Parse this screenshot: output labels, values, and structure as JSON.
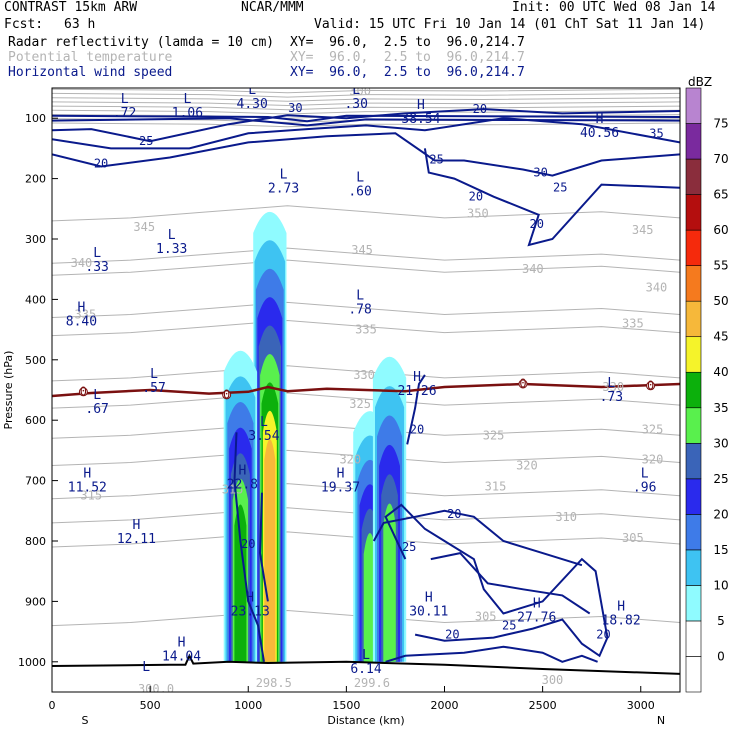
{
  "header": {
    "model": "CONTRAST 15km ARW",
    "center": "NCAR/MMM",
    "init": "Init: 00 UTC Wed 08 Jan 14",
    "fcst_label": "Fcst:",
    "fcst_value": "63 h",
    "valid": "Valid: 15 UTC Fri 10 Jan 14 (01 ChT Sat 11 Jan 14)",
    "field1": "Radar reflectivity (lamda = 10 cm)",
    "field1_xy": "XY=  96.0,  2.5 to  96.0,214.7",
    "field2": "Potential temperature",
    "field2_xy": "XY=  96.0,  2.5 to  96.0,214.7",
    "field3": "Horizontal wind speed",
    "field3_xy": "XY=  96.0,  2.5 to  96.0,214.7"
  },
  "colors": {
    "wind": "#0a1a8c",
    "theta": "#b4b4b4",
    "freezing": "#7a1010",
    "terrain": "#000000"
  },
  "chart_data": {
    "type": "heatmap",
    "title": "",
    "xlabel": "Distance (km)",
    "ylabel": "Pressure (hPa)",
    "xlim": [
      0,
      3200
    ],
    "ylim": [
      1050,
      50
    ],
    "x_ticks": [
      0,
      500,
      1000,
      1500,
      2000,
      2500,
      3000
    ],
    "y_ticks": [
      100,
      200,
      300,
      400,
      500,
      600,
      700,
      800,
      900,
      1000
    ],
    "x_end_labels": {
      "left": "S",
      "right": "N"
    },
    "colorbar": {
      "unit": "dBZ",
      "levels": [
        0,
        5,
        10,
        15,
        20,
        25,
        30,
        35,
        40,
        45,
        50,
        55,
        60,
        65,
        70,
        75
      ],
      "colors": [
        "#ffffff",
        "#8ffbff",
        "#3ec3f2",
        "#3e7be8",
        "#2a2aed",
        "#3a64b8",
        "#59f04d",
        "#0cb00c",
        "#f5f32a",
        "#f6b83a",
        "#f57a1e",
        "#f52a0c",
        "#b40e0e",
        "#8a2d3c",
        "#7a2a9e",
        "#b884d0"
      ]
    },
    "reflectivity_cells": [
      {
        "x": 1110,
        "top": 230,
        "bottom": 1000,
        "max_dbz": 45
      },
      {
        "x": 960,
        "top": 460,
        "bottom": 1000,
        "max_dbz": 35
      },
      {
        "x": 1620,
        "top": 560,
        "bottom": 1000,
        "max_dbz": 30
      },
      {
        "x": 1720,
        "top": 470,
        "bottom": 1000,
        "max_dbz": 30
      }
    ],
    "wind_labels": [
      {
        "x": 480,
        "p": 138,
        "text": "25"
      },
      {
        "x": 250,
        "p": 175,
        "text": "20"
      },
      {
        "x": 1240,
        "p": 83,
        "text": "30"
      },
      {
        "x": 2180,
        "p": 85,
        "text": "20"
      },
      {
        "x": 1960,
        "p": 168,
        "text": "25"
      },
      {
        "x": 2490,
        "p": 190,
        "text": "30"
      },
      {
        "x": 2590,
        "p": 215,
        "text": "25"
      },
      {
        "x": 2160,
        "p": 230,
        "text": "20"
      },
      {
        "x": 2470,
        "p": 275,
        "text": "20"
      },
      {
        "x": 3080,
        "p": 125,
        "text": "35"
      },
      {
        "x": 1860,
        "p": 615,
        "text": "20"
      },
      {
        "x": 1000,
        "p": 805,
        "text": "20"
      },
      {
        "x": 1820,
        "p": 810,
        "text": "25"
      },
      {
        "x": 2050,
        "p": 755,
        "text": "20"
      },
      {
        "x": 2330,
        "p": 940,
        "text": "25"
      },
      {
        "x": 2040,
        "p": 955,
        "text": "20"
      },
      {
        "x": 2810,
        "p": 955,
        "text": "20"
      }
    ],
    "theta_labels": [
      {
        "x": 1570,
        "p": 55,
        "text": "300"
      },
      {
        "x": 2170,
        "p": 258,
        "text": "350"
      },
      {
        "x": 470,
        "p": 280,
        "text": "345"
      },
      {
        "x": 1580,
        "p": 318,
        "text": "345"
      },
      {
        "x": 3010,
        "p": 285,
        "text": "345"
      },
      {
        "x": 150,
        "p": 340,
        "text": "340"
      },
      {
        "x": 2450,
        "p": 350,
        "text": "340"
      },
      {
        "x": 3080,
        "p": 380,
        "text": "340"
      },
      {
        "x": 170,
        "p": 425,
        "text": "335"
      },
      {
        "x": 1600,
        "p": 450,
        "text": "335"
      },
      {
        "x": 2960,
        "p": 440,
        "text": "335"
      },
      {
        "x": 1590,
        "p": 525,
        "text": "330"
      },
      {
        "x": 2860,
        "p": 545,
        "text": "330"
      },
      {
        "x": 1570,
        "p": 573,
        "text": "325"
      },
      {
        "x": 2250,
        "p": 625,
        "text": "325"
      },
      {
        "x": 3060,
        "p": 615,
        "text": "325"
      },
      {
        "x": 1520,
        "p": 665,
        "text": "320"
      },
      {
        "x": 2420,
        "p": 675,
        "text": "320"
      },
      {
        "x": 3060,
        "p": 665,
        "text": "320"
      },
      {
        "x": 200,
        "p": 725,
        "text": "315"
      },
      {
        "x": 920,
        "p": 715,
        "text": "315"
      },
      {
        "x": 2260,
        "p": 710,
        "text": "315"
      },
      {
        "x": 2620,
        "p": 760,
        "text": "310"
      },
      {
        "x": 2960,
        "p": 795,
        "text": "305"
      },
      {
        "x": 2210,
        "p": 925,
        "text": "305"
      },
      {
        "x": 530,
        "p": 1045,
        "text": "300.0"
      },
      {
        "x": 1130,
        "p": 1035,
        "text": "298.5"
      },
      {
        "x": 1630,
        "p": 1035,
        "text": "299.6"
      },
      {
        "x": 2550,
        "p": 1030,
        "text": "300"
      }
    ],
    "extrema": [
      {
        "x": 370,
        "p": 75,
        "kind": "L",
        "value": ".72"
      },
      {
        "x": 690,
        "p": 75,
        "kind": "L",
        "value": "1.06"
      },
      {
        "x": 1020,
        "p": 60,
        "kind": "L",
        "value": "4.30"
      },
      {
        "x": 1550,
        "p": 60,
        "kind": "L",
        "value": ".30"
      },
      {
        "x": 1880,
        "p": 85,
        "kind": "H",
        "value": "38.54"
      },
      {
        "x": 2790,
        "p": 108,
        "kind": "H",
        "value": "40.56"
      },
      {
        "x": 1180,
        "p": 200,
        "kind": "L",
        "value": "2.73"
      },
      {
        "x": 1570,
        "p": 205,
        "kind": "L",
        "value": ".60"
      },
      {
        "x": 610,
        "p": 300,
        "kind": "L",
        "value": "1.33"
      },
      {
        "x": 230,
        "p": 330,
        "kind": "L",
        "value": ".33"
      },
      {
        "x": 150,
        "p": 420,
        "kind": "H",
        "value": "8.40"
      },
      {
        "x": 1570,
        "p": 400,
        "kind": "L",
        "value": ".78"
      },
      {
        "x": 520,
        "p": 530,
        "kind": "L",
        "value": ".57"
      },
      {
        "x": 1860,
        "p": 535,
        "kind": "H",
        "value": "21.26"
      },
      {
        "x": 2850,
        "p": 545,
        "kind": "L",
        "value": ".73"
      },
      {
        "x": 230,
        "p": 565,
        "kind": "L",
        "value": ".67"
      },
      {
        "x": 1080,
        "p": 610,
        "kind": "L",
        "value": "3.54"
      },
      {
        "x": 180,
        "p": 695,
        "kind": "H",
        "value": "11.52"
      },
      {
        "x": 970,
        "p": 690,
        "kind": "H",
        "value": "22.8"
      },
      {
        "x": 1470,
        "p": 695,
        "kind": "H",
        "value": "19.37"
      },
      {
        "x": 3020,
        "p": 695,
        "kind": "L",
        "value": ".96"
      },
      {
        "x": 430,
        "p": 780,
        "kind": "H",
        "value": "12.11"
      },
      {
        "x": 1010,
        "p": 900,
        "kind": "H",
        "value": "23.13"
      },
      {
        "x": 1920,
        "p": 900,
        "kind": "H",
        "value": "30.11"
      },
      {
        "x": 2470,
        "p": 910,
        "kind": "H",
        "value": "27.76"
      },
      {
        "x": 2900,
        "p": 915,
        "kind": "H",
        "value": "18.82"
      },
      {
        "x": 660,
        "p": 975,
        "kind": "H",
        "value": "14.04"
      },
      {
        "x": 1600,
        "p": 995,
        "kind": "L",
        "value": "6.14"
      },
      {
        "x": 480,
        "p": 1015,
        "kind": "L",
        "value": ""
      }
    ],
    "freezing_level_marks": [
      {
        "x": 160,
        "p": 553,
        "text": "0"
      },
      {
        "x": 890,
        "p": 558,
        "text": "0"
      },
      {
        "x": 2400,
        "p": 540,
        "text": "0"
      },
      {
        "x": 3050,
        "p": 543,
        "text": "0"
      }
    ]
  }
}
